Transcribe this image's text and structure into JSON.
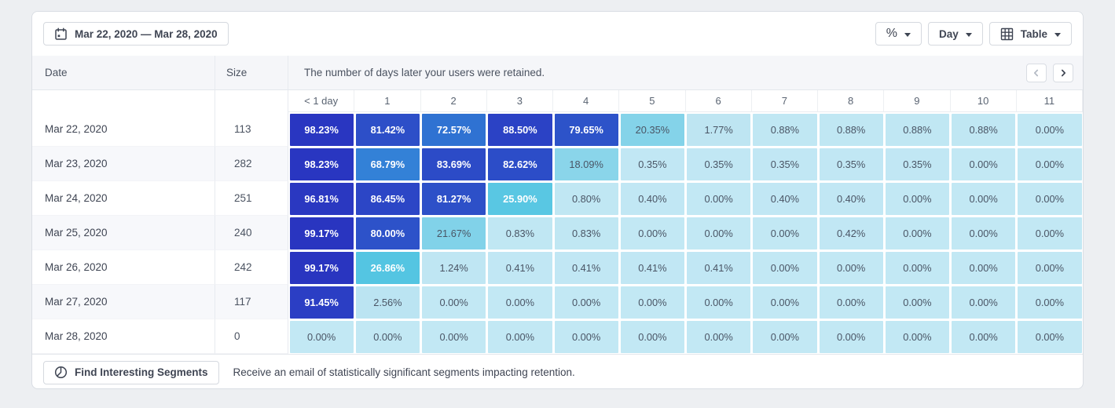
{
  "toolbar": {
    "date_range": "Mar 22, 2020 — Mar 28, 2020",
    "metric_label": "%",
    "granularity_label": "Day",
    "view_label": "Table"
  },
  "icons": {
    "date_range": "calendar-icon",
    "metric": "percent-glyph",
    "dropdown": "caret-down-icon",
    "view": "grid-icon",
    "prev": "chevron-left-icon",
    "next": "chevron-right-icon",
    "segments": "pie-segment-icon"
  },
  "table": {
    "date_header": "Date",
    "size_header": "Size",
    "description": "The number of days later your users were retained.",
    "day_headers": [
      "< 1 day",
      "1",
      "2",
      "3",
      "4",
      "5",
      "6",
      "7",
      "8",
      "9",
      "10",
      "11"
    ],
    "rows": [
      {
        "date": "Mar 22, 2020",
        "size": "113",
        "cells": [
          "98.23%",
          "81.42%",
          "72.57%",
          "88.50%",
          "79.65%",
          "20.35%",
          "1.77%",
          "0.88%",
          "0.88%",
          "0.88%",
          "0.88%",
          "0.00%"
        ]
      },
      {
        "date": "Mar 23, 2020",
        "size": "282",
        "cells": [
          "98.23%",
          "68.79%",
          "83.69%",
          "82.62%",
          "18.09%",
          "0.35%",
          "0.35%",
          "0.35%",
          "0.35%",
          "0.35%",
          "0.00%",
          "0.00%"
        ]
      },
      {
        "date": "Mar 24, 2020",
        "size": "251",
        "cells": [
          "96.81%",
          "86.45%",
          "81.27%",
          "25.90%",
          "0.80%",
          "0.40%",
          "0.00%",
          "0.40%",
          "0.40%",
          "0.00%",
          "0.00%",
          "0.00%"
        ]
      },
      {
        "date": "Mar 25, 2020",
        "size": "240",
        "cells": [
          "99.17%",
          "80.00%",
          "21.67%",
          "0.83%",
          "0.83%",
          "0.00%",
          "0.00%",
          "0.00%",
          "0.42%",
          "0.00%",
          "0.00%",
          "0.00%"
        ]
      },
      {
        "date": "Mar 26, 2020",
        "size": "242",
        "cells": [
          "99.17%",
          "26.86%",
          "1.24%",
          "0.41%",
          "0.41%",
          "0.41%",
          "0.41%",
          "0.00%",
          "0.00%",
          "0.00%",
          "0.00%",
          "0.00%"
        ]
      },
      {
        "date": "Mar 27, 2020",
        "size": "117",
        "cells": [
          "91.45%",
          "2.56%",
          "0.00%",
          "0.00%",
          "0.00%",
          "0.00%",
          "0.00%",
          "0.00%",
          "0.00%",
          "0.00%",
          "0.00%",
          "0.00%"
        ]
      },
      {
        "date": "Mar 28, 2020",
        "size": "0",
        "cells": [
          "0.00%",
          "0.00%",
          "0.00%",
          "0.00%",
          "0.00%",
          "0.00%",
          "0.00%",
          "0.00%",
          "0.00%",
          "0.00%",
          "0.00%",
          "0.00%"
        ]
      }
    ]
  },
  "footer": {
    "button_label": "Find Interesting Segments",
    "description": "Receive an email of statistically significant segments impacting retention."
  },
  "colors": {
    "scale_stops": [
      [
        0,
        "#C2E8F4"
      ],
      [
        2,
        "#BDE5F2"
      ],
      [
        18,
        "#8AD5EA"
      ],
      [
        22,
        "#80D2E9"
      ],
      [
        26,
        "#58C7E3"
      ],
      [
        30,
        "#47BFDF"
      ],
      [
        69,
        "#3381D7"
      ],
      [
        73,
        "#2E70D1"
      ],
      [
        80,
        "#2D52C9"
      ],
      [
        89,
        "#2B41C5"
      ],
      [
        100,
        "#2934C0"
      ]
    ],
    "white_text_threshold": 25,
    "header_bg": "#F5F6F9",
    "stripe_bg": "#F7F8FB",
    "border": "#E4E7EC"
  }
}
